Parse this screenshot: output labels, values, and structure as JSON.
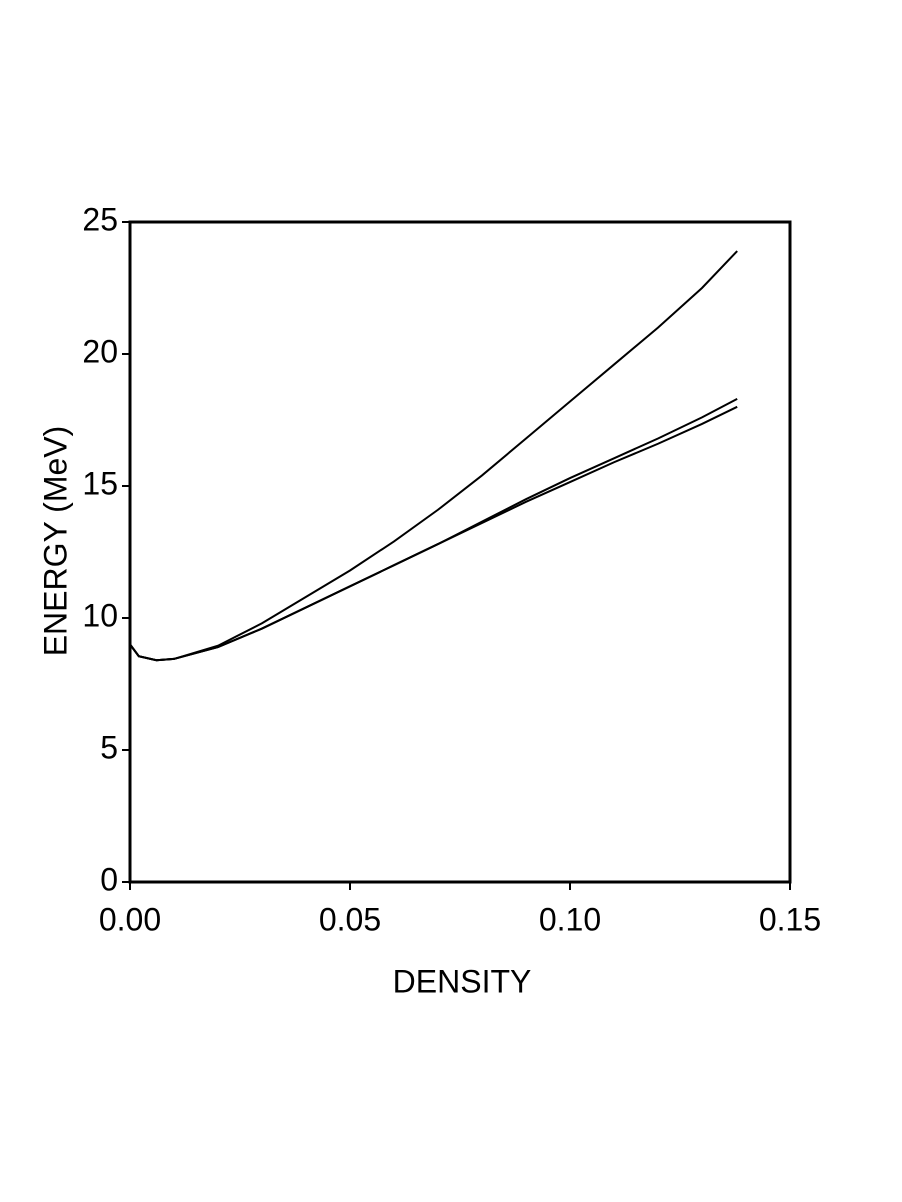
{
  "chart_data": {
    "type": "line",
    "x_label": "DENSITY",
    "y_label": "ENERGY  (MeV)",
    "x": [
      0,
      0.002,
      0.006,
      0.01,
      0.02,
      0.03,
      0.04,
      0.05,
      0.06,
      0.07,
      0.08,
      0.09,
      0.1,
      0.11,
      0.12,
      0.13,
      0.138
    ],
    "series": [
      {
        "color": "#000000",
        "values": [
          9.0,
          8.55,
          8.4,
          8.45,
          8.95,
          9.8,
          10.8,
          11.8,
          12.9,
          14.1,
          15.4,
          16.8,
          18.2,
          19.6,
          21.0,
          22.5,
          23.9
        ]
      },
      {
        "color": "#000000",
        "values": [
          9.0,
          8.55,
          8.4,
          8.45,
          8.9,
          9.6,
          10.4,
          11.2,
          12.0,
          12.8,
          13.65,
          14.5,
          15.3,
          16.05,
          16.8,
          17.6,
          18.3
        ]
      },
      {
        "color": "#000000",
        "values": [
          9.0,
          8.55,
          8.4,
          8.45,
          8.9,
          9.6,
          10.4,
          11.2,
          12.0,
          12.8,
          13.6,
          14.4,
          15.15,
          15.9,
          16.6,
          17.35,
          18.0
        ]
      }
    ],
    "xlim": [
      0,
      0.15
    ],
    "ylim": [
      0,
      25
    ],
    "xticks": [
      {
        "value": 0,
        "label": "0.00"
      },
      0.05,
      {
        "value": 0.1,
        "label": "0.10"
      },
      0.15
    ],
    "yticks": [
      0,
      5,
      10,
      15,
      20,
      25
    ],
    "grid": false
  }
}
